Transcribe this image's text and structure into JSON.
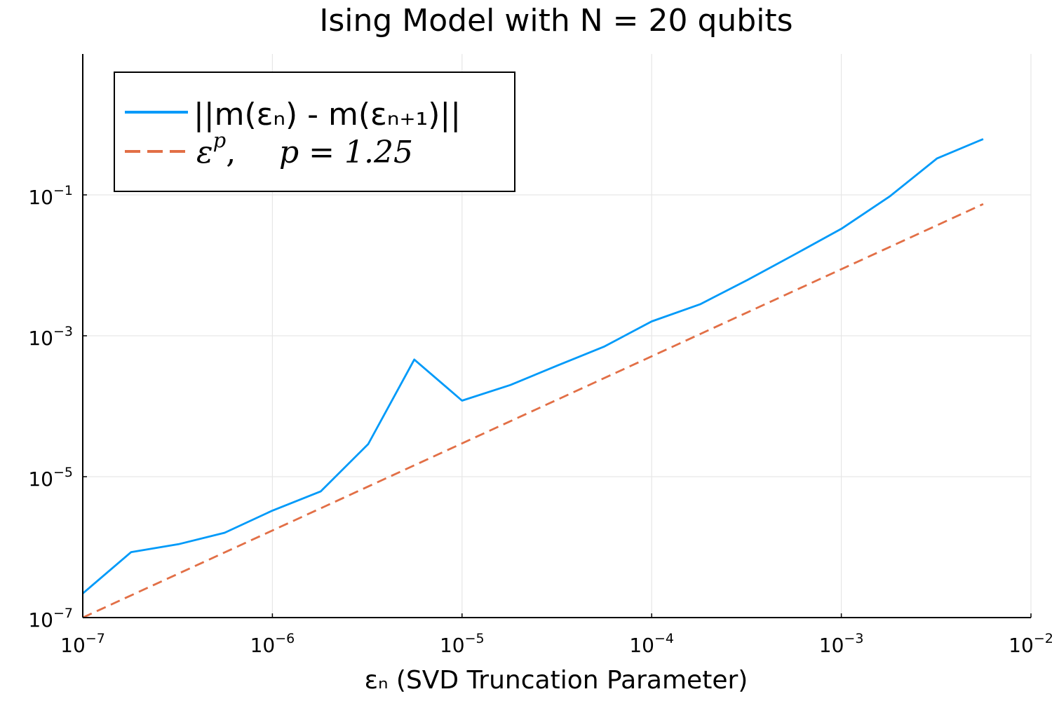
{
  "chart_data": {
    "type": "line",
    "title": "Ising Model with N = 20 qubits",
    "xlabel": "εₙ (SVD Truncation Parameter)",
    "ylabel": "",
    "xscale": "log",
    "yscale": "log",
    "xlim": [
      1e-07,
      0.01
    ],
    "ylim": [
      1e-07,
      10.0
    ],
    "grid": true,
    "legend_position": "top-left",
    "x_ticks": [
      {
        "base": "10",
        "exp": "−7",
        "value": 1e-07
      },
      {
        "base": "10",
        "exp": "−6",
        "value": 1e-06
      },
      {
        "base": "10",
        "exp": "−5",
        "value": 1e-05
      },
      {
        "base": "10",
        "exp": "−4",
        "value": 0.0001
      },
      {
        "base": "10",
        "exp": "−3",
        "value": 0.001
      },
      {
        "base": "10",
        "exp": "−2",
        "value": 0.01
      }
    ],
    "y_ticks": [
      {
        "base": "10",
        "exp": "−7",
        "value": 1e-07
      },
      {
        "base": "10",
        "exp": "−5",
        "value": 1e-05
      },
      {
        "base": "10",
        "exp": "−3",
        "value": 0.001
      },
      {
        "base": "10",
        "exp": "−1",
        "value": 0.1
      }
    ],
    "series": [
      {
        "name": "||m(εₙ) - m(εₙ₊₁)||",
        "legend_parts": [
          "||m(εₙ) - m(εₙ₊₁)||"
        ],
        "color": "#009af9",
        "dash": "solid",
        "x": [
          1e-07,
          1.8e-07,
          3.2e-07,
          5.6e-07,
          1e-06,
          1.8e-06,
          3.2e-06,
          5.6e-06,
          1e-05,
          1.8e-05,
          3.2e-05,
          5.6e-05,
          0.0001,
          0.00018,
          0.00032,
          0.00056,
          0.001,
          0.0018,
          0.0032,
          0.0056
        ],
        "y": [
          2.2e-07,
          8.5e-07,
          1.1e-06,
          1.6e-06,
          3.3e-06,
          6.2e-06,
          2.9e-05,
          0.00046,
          0.00012,
          0.0002,
          0.00038,
          0.0007,
          0.0016,
          0.0028,
          0.0062,
          0.014,
          0.033,
          0.095,
          0.33,
          0.62
        ]
      },
      {
        "name": "ε^p, p = 1.25",
        "legend_parts": [
          "ε",
          "p",
          ",",
          "p = 1.25"
        ],
        "color": "#e26f46",
        "dash": "dashed",
        "x": [
          1e-07,
          0.0056
        ],
        "y": [
          1e-07,
          0.074
        ]
      }
    ]
  }
}
